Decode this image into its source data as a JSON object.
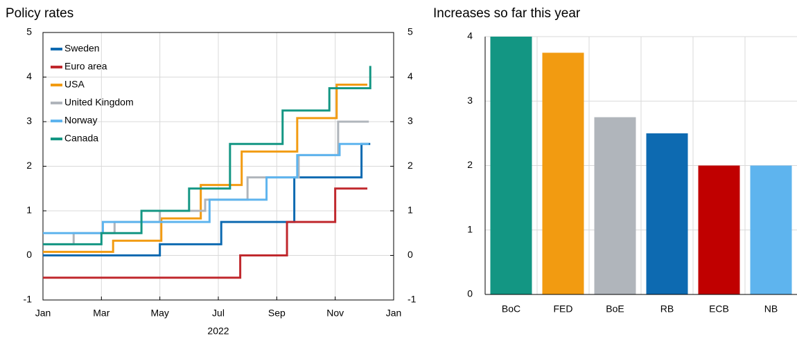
{
  "chart_data": [
    {
      "type": "step",
      "title": "Policy rates",
      "xlabel": "2022",
      "xlim": [
        0,
        12
      ],
      "xticks": [
        {
          "value": 0,
          "label": "Jan"
        },
        {
          "value": 2,
          "label": "Mar"
        },
        {
          "value": 4,
          "label": "May"
        },
        {
          "value": 6,
          "label": "Jul"
        },
        {
          "value": 8,
          "label": "Sep"
        },
        {
          "value": 10,
          "label": "Nov"
        },
        {
          "value": 12,
          "label": "Jan"
        }
      ],
      "ylim": [
        -1,
        5
      ],
      "yticks": [
        -1,
        0,
        1,
        2,
        3,
        4,
        5
      ],
      "y2lim": [
        -1,
        5
      ],
      "y2ticks": [
        -1,
        0,
        1,
        2,
        3,
        4,
        5
      ],
      "grid": true,
      "legend": "upper left",
      "series": [
        {
          "name": "Sweden",
          "color": "#0d6ab1",
          "x": [
            0,
            4.0,
            6.1,
            8.6,
            10.9,
            11.2
          ],
          "values": [
            0,
            0.25,
            0.75,
            1.75,
            2.5,
            2.5
          ]
        },
        {
          "name": "Euro area",
          "color": "#c0282d",
          "x": [
            0,
            6.75,
            8.35,
            10.0,
            11.1
          ],
          "values": [
            -0.5,
            0,
            0.75,
            1.5,
            1.5
          ]
        },
        {
          "name": "USA",
          "color": "#f29b11",
          "x": [
            0,
            2.4,
            4.05,
            5.4,
            6.8,
            8.7,
            10.05,
            11.1
          ],
          "values": [
            0.08,
            0.33,
            0.83,
            1.58,
            2.33,
            3.08,
            3.83,
            3.83
          ]
        },
        {
          "name": "United Kingdom",
          "color": "#b0b5bb",
          "x": [
            0,
            1.05,
            2.45,
            4.0,
            5.55,
            7.0,
            8.75,
            10.1,
            11.15
          ],
          "values": [
            0.25,
            0.5,
            0.75,
            1.0,
            1.25,
            1.75,
            2.25,
            3.0,
            3.0
          ]
        },
        {
          "name": "Norway",
          "color": "#5eb4ee",
          "x": [
            0,
            2.05,
            5.7,
            7.65,
            8.7,
            10.15,
            11.15
          ],
          "values": [
            0.5,
            0.75,
            1.25,
            1.75,
            2.25,
            2.5,
            2.5
          ]
        },
        {
          "name": "Canada",
          "color": "#139683",
          "x": [
            0,
            2.0,
            3.37,
            5.0,
            6.4,
            8.2,
            9.8,
            11.2
          ],
          "values": [
            0.25,
            0.5,
            1.0,
            1.5,
            2.5,
            3.25,
            3.75,
            4.25
          ]
        }
      ]
    },
    {
      "type": "bar",
      "title": "Increases so far this year",
      "categories": [
        "BoC",
        "FED",
        "BoE",
        "RB",
        "ECB",
        "NB"
      ],
      "values": [
        4,
        3.75,
        2.75,
        2.5,
        2,
        2
      ],
      "colors": [
        "#139683",
        "#f29b11",
        "#b0b5bb",
        "#0d6ab1",
        "#c00000",
        "#5eb4ee"
      ],
      "ylim": [
        0,
        4
      ],
      "yticks": [
        0,
        1,
        2,
        3,
        4
      ],
      "grid": true
    }
  ]
}
